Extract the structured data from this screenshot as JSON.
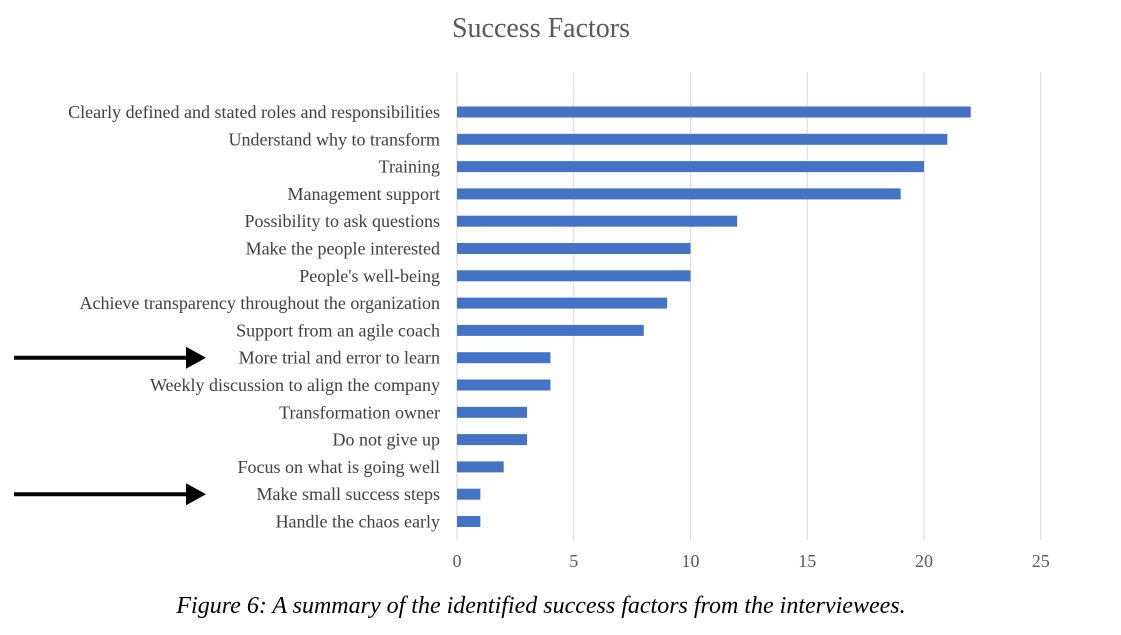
{
  "colors": {
    "bar": "#4472C4",
    "grid": "#D9D9D9",
    "arrow": "#000000"
  },
  "caption": "Figure 6: A summary of the identified success factors from the interviewees.",
  "chart_data": {
    "type": "bar",
    "orientation": "horizontal",
    "title": "Success Factors",
    "xlabel": "",
    "ylabel": "",
    "xlim": [
      0,
      25
    ],
    "x_ticks": [
      "0",
      "5",
      "10",
      "15",
      "20",
      "25"
    ],
    "grid": "vertical",
    "legend": "none",
    "categories": [
      "Clearly defined and stated roles and responsibilities",
      "Understand why to transform",
      "Training",
      "Management support",
      "Possibility to ask questions",
      "Make the people interested",
      "People's well-being",
      "Achieve transparency throughout the organization",
      "Support from an agile coach",
      "More trial and error to learn",
      "Weekly discussion to align the company",
      "Transformation owner",
      "Do not give up",
      "Focus on what is going well",
      "Make small success steps",
      "Handle the chaos early"
    ],
    "values": [
      22,
      21,
      20,
      19,
      12,
      10,
      10,
      9,
      8,
      4,
      4,
      3,
      3,
      2,
      1,
      1
    ],
    "highlighted_categories": [
      "More trial and error to learn",
      "Make small success steps"
    ]
  }
}
